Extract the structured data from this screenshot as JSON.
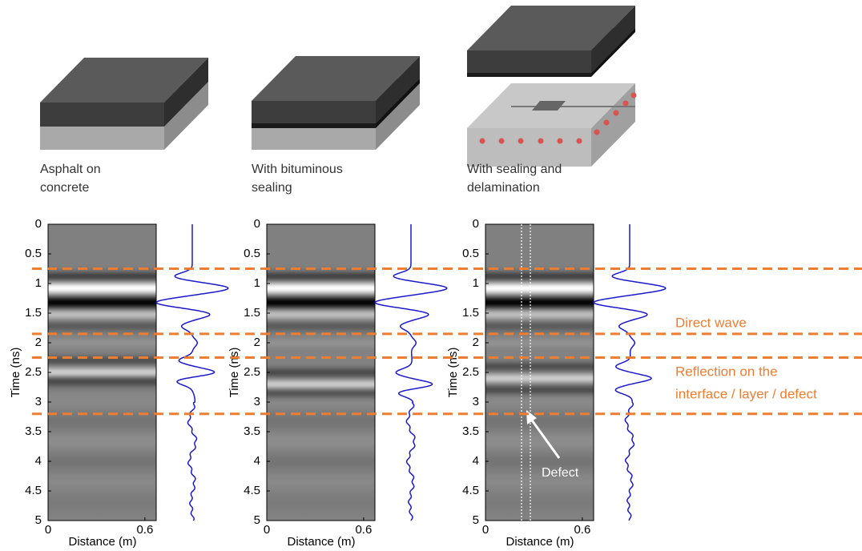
{
  "panels": [
    {
      "caption": [
        "Asphalt on",
        "concrete"
      ]
    },
    {
      "caption": [
        "With bituminous",
        "sealing"
      ]
    },
    {
      "caption": [
        "With sealing and",
        "delamination"
      ]
    }
  ],
  "axes": {
    "ylabel": "Time (ns)",
    "xlabel": "Distance (m)",
    "ylim": [
      0,
      5
    ],
    "yticks": [
      0,
      0.5,
      1,
      1.5,
      2,
      2.5,
      3,
      3.5,
      4,
      4.5,
      5
    ],
    "xlim": [
      0,
      0.67
    ],
    "xticks": [
      0,
      0.6
    ]
  },
  "guides": [
    0.75,
    1.85,
    2.25,
    3.2
  ],
  "annotations": {
    "direct": "Direct wave",
    "reflection": [
      "Reflection on the",
      "interface / layer / defect"
    ],
    "defect": "Defect"
  }
}
